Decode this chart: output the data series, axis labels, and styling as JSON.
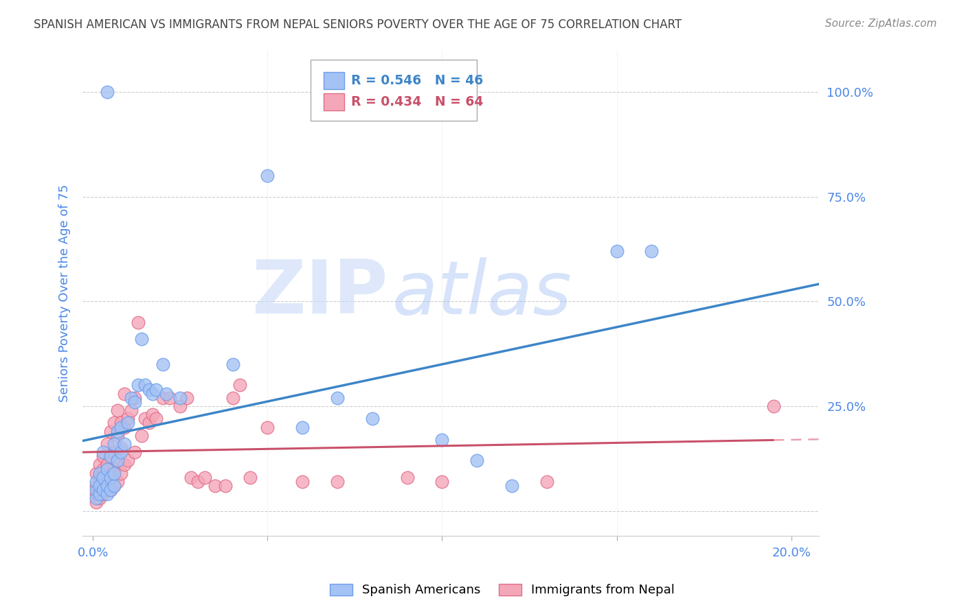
{
  "title": "SPANISH AMERICAN VS IMMIGRANTS FROM NEPAL SENIORS POVERTY OVER THE AGE OF 75 CORRELATION CHART",
  "source": "Source: ZipAtlas.com",
  "ylabel": "Seniors Poverty Over the Age of 75",
  "x_ticks": [
    0.0,
    0.05,
    0.1,
    0.15,
    0.2
  ],
  "x_tick_labels": [
    "0.0%",
    "",
    "",
    "",
    "20.0%"
  ],
  "y_ticks": [
    0.0,
    0.25,
    0.5,
    0.75,
    1.0
  ],
  "y_tick_labels": [
    "",
    "25.0%",
    "50.0%",
    "75.0%",
    "100.0%"
  ],
  "xlim": [
    -0.003,
    0.208
  ],
  "ylim": [
    -0.06,
    1.1
  ],
  "blue_R": 0.546,
  "blue_N": 46,
  "pink_R": 0.434,
  "pink_N": 64,
  "blue_color": "#a4c2f4",
  "pink_color": "#f4a7b9",
  "blue_edge": "#6d9eeb",
  "pink_edge": "#e06c88",
  "blue_scatter": [
    [
      0.001,
      0.03
    ],
    [
      0.001,
      0.05
    ],
    [
      0.001,
      0.07
    ],
    [
      0.002,
      0.04
    ],
    [
      0.002,
      0.06
    ],
    [
      0.002,
      0.09
    ],
    [
      0.003,
      0.05
    ],
    [
      0.003,
      0.08
    ],
    [
      0.003,
      0.14
    ],
    [
      0.004,
      0.04
    ],
    [
      0.004,
      0.06
    ],
    [
      0.004,
      0.1
    ],
    [
      0.005,
      0.05
    ],
    [
      0.005,
      0.08
    ],
    [
      0.005,
      0.13
    ],
    [
      0.006,
      0.06
    ],
    [
      0.006,
      0.09
    ],
    [
      0.006,
      0.16
    ],
    [
      0.007,
      0.12
    ],
    [
      0.007,
      0.19
    ],
    [
      0.008,
      0.14
    ],
    [
      0.008,
      0.2
    ],
    [
      0.009,
      0.16
    ],
    [
      0.01,
      0.21
    ],
    [
      0.011,
      0.27
    ],
    [
      0.012,
      0.26
    ],
    [
      0.013,
      0.3
    ],
    [
      0.014,
      0.41
    ],
    [
      0.015,
      0.3
    ],
    [
      0.016,
      0.29
    ],
    [
      0.017,
      0.28
    ],
    [
      0.018,
      0.29
    ],
    [
      0.02,
      0.35
    ],
    [
      0.021,
      0.28
    ],
    [
      0.025,
      0.27
    ],
    [
      0.04,
      0.35
    ],
    [
      0.05,
      0.8
    ],
    [
      0.06,
      0.2
    ],
    [
      0.07,
      0.27
    ],
    [
      0.08,
      0.22
    ],
    [
      0.1,
      0.17
    ],
    [
      0.11,
      0.12
    ],
    [
      0.12,
      0.06
    ],
    [
      0.15,
      0.62
    ],
    [
      0.16,
      0.62
    ],
    [
      0.004,
      1.0
    ]
  ],
  "pink_scatter": [
    [
      0.001,
      0.02
    ],
    [
      0.001,
      0.04
    ],
    [
      0.001,
      0.06
    ],
    [
      0.001,
      0.09
    ],
    [
      0.002,
      0.03
    ],
    [
      0.002,
      0.05
    ],
    [
      0.002,
      0.08
    ],
    [
      0.002,
      0.11
    ],
    [
      0.003,
      0.04
    ],
    [
      0.003,
      0.07
    ],
    [
      0.003,
      0.1
    ],
    [
      0.003,
      0.13
    ],
    [
      0.004,
      0.05
    ],
    [
      0.004,
      0.08
    ],
    [
      0.004,
      0.11
    ],
    [
      0.004,
      0.16
    ],
    [
      0.005,
      0.05
    ],
    [
      0.005,
      0.08
    ],
    [
      0.005,
      0.13
    ],
    [
      0.005,
      0.19
    ],
    [
      0.006,
      0.06
    ],
    [
      0.006,
      0.1
    ],
    [
      0.006,
      0.14
    ],
    [
      0.006,
      0.21
    ],
    [
      0.007,
      0.07
    ],
    [
      0.007,
      0.12
    ],
    [
      0.007,
      0.18
    ],
    [
      0.007,
      0.24
    ],
    [
      0.008,
      0.09
    ],
    [
      0.008,
      0.15
    ],
    [
      0.008,
      0.21
    ],
    [
      0.009,
      0.11
    ],
    [
      0.009,
      0.2
    ],
    [
      0.009,
      0.28
    ],
    [
      0.01,
      0.12
    ],
    [
      0.01,
      0.22
    ],
    [
      0.011,
      0.24
    ],
    [
      0.012,
      0.14
    ],
    [
      0.012,
      0.27
    ],
    [
      0.013,
      0.45
    ],
    [
      0.014,
      0.18
    ],
    [
      0.015,
      0.22
    ],
    [
      0.016,
      0.21
    ],
    [
      0.017,
      0.23
    ],
    [
      0.018,
      0.22
    ],
    [
      0.02,
      0.27
    ],
    [
      0.022,
      0.27
    ],
    [
      0.025,
      0.25
    ],
    [
      0.027,
      0.27
    ],
    [
      0.028,
      0.08
    ],
    [
      0.03,
      0.07
    ],
    [
      0.032,
      0.08
    ],
    [
      0.035,
      0.06
    ],
    [
      0.038,
      0.06
    ],
    [
      0.04,
      0.27
    ],
    [
      0.042,
      0.3
    ],
    [
      0.045,
      0.08
    ],
    [
      0.05,
      0.2
    ],
    [
      0.06,
      0.07
    ],
    [
      0.07,
      0.07
    ],
    [
      0.09,
      0.08
    ],
    [
      0.1,
      0.07
    ],
    [
      0.13,
      0.07
    ],
    [
      0.195,
      0.25
    ]
  ],
  "watermark_zip": "ZIP",
  "watermark_atlas": "atlas",
  "legend_label_blue": "Spanish Americans",
  "legend_label_pink": "Immigrants from Nepal",
  "background_color": "#ffffff",
  "grid_color": "#cccccc",
  "title_color": "#434343",
  "axis_label_color": "#4a86e8",
  "tick_color": "#4a86e8"
}
